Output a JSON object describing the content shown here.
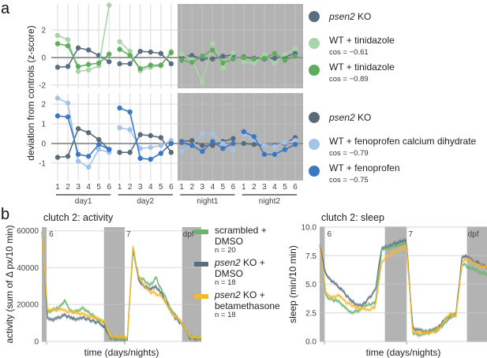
{
  "panel_a": {
    "letter": "a",
    "ylabel": "deviation from controls (z-score)",
    "x_ticks": [
      "1",
      "2",
      "3",
      "4",
      "5",
      "6"
    ],
    "windows": [
      "day1",
      "day2",
      "night1",
      "night2"
    ]
  },
  "panel_b": {
    "letter": "b",
    "xlabel": "time (days/nights)",
    "dpf_labels": [
      "6",
      "7",
      "dpf"
    ],
    "legend": [
      {
        "line1": "scrambled +",
        "line1_italic": "",
        "line2": "DMSO",
        "n": "n = 20",
        "color": "#6db36d"
      },
      {
        "line1": " KO +",
        "line1_italic": "psen2",
        "line2": "DMSO",
        "n": "n = 18",
        "color": "#5a6e82"
      },
      {
        "line1": " KO +",
        "line1_italic": "psen2",
        "line2": "betamethasone",
        "n": "n = 18",
        "color": "#f5b82e"
      }
    ]
  },
  "chart_data": [
    {
      "type": "line",
      "title": "",
      "ylabel": "deviation from controls (z-score)",
      "ylim": [
        -2.3,
        4.0
      ],
      "yticks": [
        -2,
        0,
        2
      ],
      "categories": [
        "day1-1",
        "day1-2",
        "day1-3",
        "day1-4",
        "day1-5",
        "day1-6",
        "day2-1",
        "day2-2",
        "day2-3",
        "day2-4",
        "day2-5",
        "day2-6",
        "night1-1",
        "night1-2",
        "night1-3",
        "night1-4",
        "night1-5",
        "night1-6",
        "night2-1",
        "night2-2",
        "night2-3",
        "night2-4",
        "night2-5",
        "night2-6"
      ],
      "shaded_region": "night1-night2",
      "series": [
        {
          "name": "psen2 KO",
          "legend_italic": "psen2",
          "legend_rest": " KO",
          "cos": "",
          "color": "#5a6e82",
          "values": [
            -0.7,
            -0.65,
            0.7,
            0.55,
            0.15,
            -0.3,
            -0.45,
            -0.45,
            0.45,
            0.4,
            0.3,
            -0.45,
            0.05,
            0.15,
            -0.1,
            -0.1,
            0.1,
            0.2,
            0.05,
            -0.05,
            -0.1,
            -0.05,
            0.05,
            0.3
          ]
        },
        {
          "name": "WT + tinidazole",
          "legend_italic": "",
          "legend_rest": "WT + tinidazole",
          "cos": "cos = −0.61",
          "color": "#a8d5a8",
          "values": [
            1.6,
            1.3,
            -1.0,
            -0.9,
            -0.6,
            3.8,
            1.15,
            0.45,
            -0.95,
            -0.7,
            -0.6,
            0.45,
            0.25,
            -0.15,
            -1.8,
            1.0,
            -0.75,
            0.35,
            -0.35,
            -0.4,
            0.2,
            -0.4,
            0.25,
            0.65
          ]
        },
        {
          "name": "WT + tinidazole",
          "legend_italic": "",
          "legend_rest": "WT + tinidazole",
          "cos": "cos = −0.89",
          "color": "#5cad5c",
          "values": [
            1.0,
            0.85,
            -0.65,
            -0.5,
            -0.4,
            0.25,
            0.6,
            0.15,
            -0.8,
            -0.55,
            -0.55,
            0.35,
            -0.2,
            -0.35,
            0.1,
            0.55,
            -0.4,
            -0.1,
            0.0,
            -0.1,
            -0.05,
            0.3,
            -0.2,
            0.1
          ]
        }
      ]
    },
    {
      "type": "line",
      "title": "",
      "ylabel": "deviation from controls (z-score)",
      "ylim": [
        -1.8,
        2.6
      ],
      "yticks": [
        -1,
        0,
        1,
        2
      ],
      "categories": [
        "day1-1",
        "day1-2",
        "day1-3",
        "day1-4",
        "day1-5",
        "day1-6",
        "day2-1",
        "day2-2",
        "day2-3",
        "day2-4",
        "day2-5",
        "day2-6",
        "night1-1",
        "night1-2",
        "night1-3",
        "night1-4",
        "night1-5",
        "night1-6",
        "night2-1",
        "night2-2",
        "night2-3",
        "night2-4",
        "night2-5",
        "night2-6"
      ],
      "shaded_region": "night1-night2",
      "series": [
        {
          "name": "psen2 KO",
          "legend_italic": "psen2",
          "legend_rest": " KO",
          "cos": "",
          "color": "#5a6b78",
          "values": [
            -0.7,
            -0.65,
            0.75,
            0.55,
            0.2,
            -0.3,
            -0.45,
            -0.45,
            0.45,
            0.4,
            0.3,
            -0.45,
            0.1,
            0.15,
            -0.1,
            -0.1,
            0.1,
            0.25,
            0.0,
            -0.05,
            -0.1,
            -0.1,
            0.0,
            0.3
          ]
        },
        {
          "name": "WT + fenoprofen calcium dihydrate",
          "legend_italic": "",
          "legend_rest": "WT + fenoprofen calcium dihydrate",
          "cos": "cos = −0.79",
          "color": "#a4c3e8",
          "values": [
            2.3,
            2.05,
            -0.9,
            -1.2,
            -0.3,
            -0.45,
            0.8,
            0.7,
            -0.25,
            -0.2,
            -0.1,
            0.15,
            -0.4,
            -0.1,
            0.5,
            0.5,
            0.0,
            -0.35,
            0.5,
            0.2,
            -0.1,
            -0.15,
            0.05,
            0.15
          ]
        },
        {
          "name": "WT + fenoprofen",
          "legend_italic": "",
          "legend_rest": "WT + fenoprofen",
          "cos": "cos = −0.75",
          "color": "#3b78c4",
          "values": [
            1.4,
            1.35,
            -0.55,
            -0.65,
            -0.05,
            -0.3,
            1.8,
            1.6,
            -0.75,
            -0.8,
            -0.5,
            0.0,
            0.05,
            -0.1,
            -0.4,
            0.1,
            -0.25,
            0.0,
            0.6,
            0.35,
            -0.55,
            -0.55,
            -0.3,
            -0.05
          ]
        }
      ]
    },
    {
      "type": "area",
      "title": "clutch 2: activity",
      "xlabel": "time (days/nights)",
      "ylabel": "activity (sum of Δ px/10 min)",
      "ylim": [
        0,
        62000
      ],
      "yticks": [
        0,
        20000,
        40000,
        60000
      ],
      "x_segments": [
        "night",
        "day 6 dpf",
        "night",
        "day 7 dpf",
        "night"
      ],
      "series": [
        {
          "name": "scrambled + DMSO",
          "color": "#6db36d",
          "values": [
            60000,
            16000,
            17000,
            18000,
            22000,
            17000,
            16000,
            18000,
            16000,
            14000,
            12000,
            10000,
            2500,
            2000,
            1800,
            1500,
            50000,
            35000,
            33000,
            30000,
            35000,
            28000,
            22000,
            16000,
            12000,
            8000,
            2500,
            2000,
            1800
          ]
        },
        {
          "name": "psen2 KO + DMSO",
          "color": "#5a6e82",
          "values": [
            60000,
            12000,
            12000,
            13000,
            14000,
            13000,
            12000,
            13000,
            12000,
            11000,
            10000,
            8000,
            1800,
            1500,
            1400,
            1200,
            50000,
            33000,
            30000,
            28000,
            30000,
            26000,
            20000,
            14000,
            11000,
            8000,
            2000,
            1800,
            1600
          ]
        },
        {
          "name": "psen2 KO + betamethasone",
          "color": "#f5b82e",
          "values": [
            60000,
            17000,
            17000,
            17000,
            17000,
            16000,
            16000,
            15000,
            14000,
            13000,
            12000,
            11000,
            2500,
            2500,
            2000,
            1800,
            52000,
            35000,
            30000,
            27000,
            26000,
            24000,
            20000,
            15000,
            12000,
            8000,
            3000,
            2500,
            2200
          ]
        }
      ]
    },
    {
      "type": "area",
      "title": "clutch 2: sleep",
      "xlabel": "time (days/nights)",
      "ylabel": "sleep (min/10 min)",
      "ylim": [
        0,
        10
      ],
      "yticks": [
        "0.0",
        "2.5",
        "5.0",
        "7.5",
        "10.0"
      ],
      "x_segments": [
        "night",
        "day 6 dpf",
        "night",
        "day 7 dpf",
        "night"
      ],
      "series": [
        {
          "name": "scrambled + DMSO",
          "color": "#6db36d",
          "values": [
            8.5,
            4.0,
            3.6,
            3.5,
            3.0,
            2.6,
            2.6,
            3.0,
            3.2,
            3.4,
            8.0,
            8.2,
            8.4,
            8.5,
            8.7,
            0.8,
            0.6,
            0.7,
            0.8,
            1.0,
            1.5,
            2.0,
            2.5,
            6.8,
            6.5,
            6.3,
            6.0,
            5.9
          ]
        },
        {
          "name": "psen2 KO + DMSO",
          "color": "#5a6e82",
          "values": [
            8.5,
            5.8,
            5.3,
            4.8,
            4.2,
            3.6,
            3.2,
            3.2,
            3.8,
            4.5,
            8.2,
            8.3,
            8.5,
            8.7,
            8.9,
            1.2,
            1.0,
            0.9,
            0.9,
            1.2,
            1.8,
            2.2,
            2.4,
            7.5,
            7.3,
            7.0,
            6.8,
            6.5
          ]
        },
        {
          "name": "psen2 KO + betamethasone",
          "color": "#f5b82e",
          "values": [
            8.5,
            4.2,
            3.8,
            4.0,
            3.6,
            3.2,
            3.0,
            2.8,
            2.8,
            3.0,
            7.0,
            7.4,
            7.8,
            8.0,
            8.3,
            0.8,
            0.8,
            0.7,
            0.8,
            1.0,
            1.6,
            2.4,
            2.2,
            7.0,
            7.2,
            6.9,
            6.6,
            6.5
          ]
        }
      ]
    }
  ]
}
